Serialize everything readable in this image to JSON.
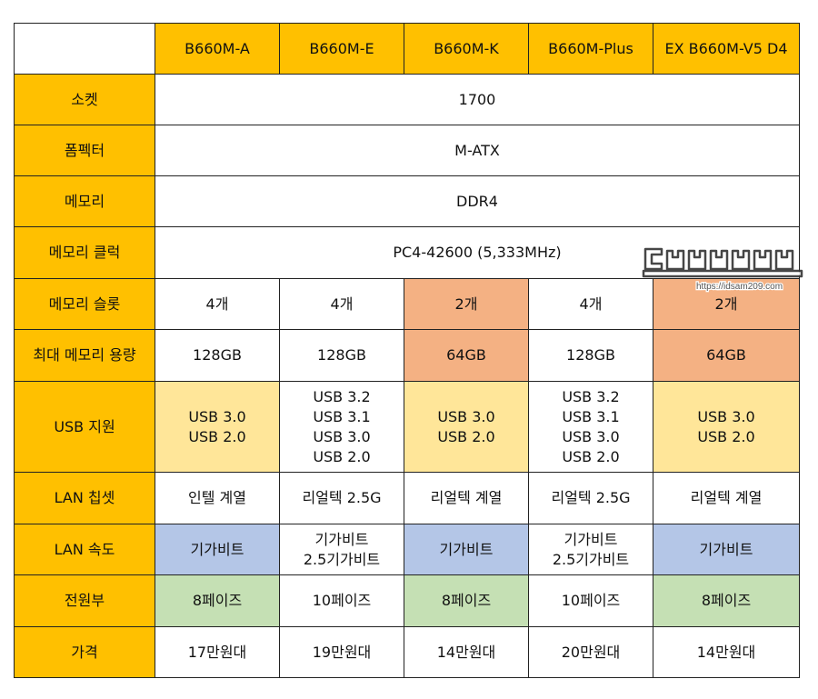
{
  "columns": [
    "B660M-A",
    "B660M-E",
    "B660M-K",
    "B660M-Plus",
    "EX B660M-V5 D4"
  ],
  "rows": [
    {
      "label": "소켓",
      "span": "1700"
    },
    {
      "label": "폼펙터",
      "span": "M-ATX"
    },
    {
      "label": "메모리",
      "span": "DDR4"
    },
    {
      "label": "메모리 클럭",
      "span": "PC4-42600 (5,333MHz)"
    },
    {
      "label": "메모리 슬롯",
      "cells": [
        "4개",
        "4개",
        "2개",
        "4개",
        "2개"
      ]
    },
    {
      "label": "최대 메모리 용량",
      "cells": [
        "128GB",
        "128GB",
        "64GB",
        "128GB",
        "64GB"
      ]
    },
    {
      "label": "USB 지원",
      "cells": [
        "USB 3.0\nUSB 2.0",
        "USB 3.2\nUSB 3.1\nUSB 3.0\nUSB 2.0",
        "USB 3.0\nUSB 2.0",
        "USB 3.2\nUSB 3.1\nUSB 3.0\nUSB 2.0",
        "USB 3.0\nUSB 2.0"
      ]
    },
    {
      "label": "LAN 칩셋",
      "cells": [
        "인텔 계열",
        "리얼텍 2.5G",
        "리얼텍 계열",
        "리얼텍 2.5G",
        "리얼텍 계열"
      ]
    },
    {
      "label": "LAN 속도",
      "cells": [
        "기가비트",
        "기가비트\n2.5기가비트",
        "기가비트",
        "기가비트\n2.5기가비트",
        "기가비트"
      ]
    },
    {
      "label": "전원부",
      "cells": [
        "8페이즈",
        "10페이즈",
        "8페이즈",
        "10페이즈",
        "8페이즈"
      ]
    },
    {
      "label": "가격",
      "cells": [
        "17만원대",
        "19만원대",
        "14만원대",
        "20만원대",
        "14만원대"
      ]
    }
  ],
  "watermark": {
    "text": "https://idsam209.com"
  },
  "colors": {
    "header": "#ffc000",
    "orange": "#f4b183",
    "yellow": "#ffe699",
    "blue": "#b4c6e7",
    "green": "#c5e0b4"
  }
}
